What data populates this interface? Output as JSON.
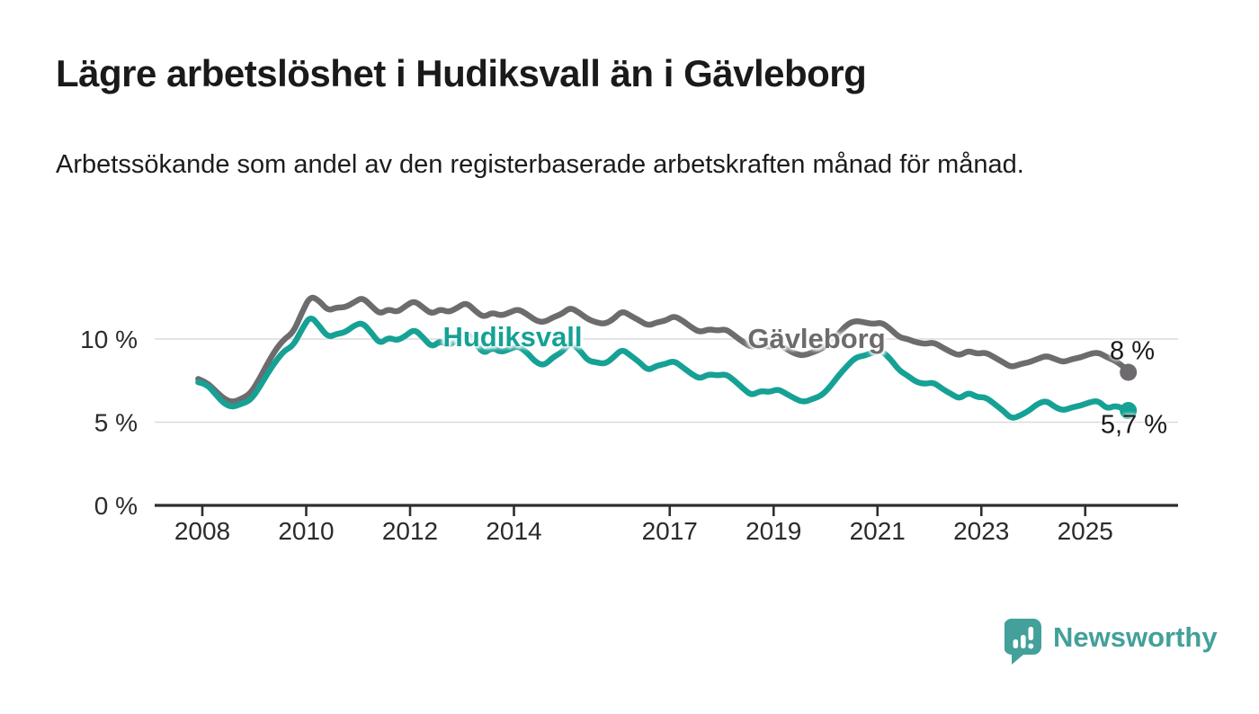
{
  "header": {
    "title": "Lägre arbetslöshet i Hudiksvall än i Gävleborg",
    "subtitle": "Arbetssökande som andel av den registerbaserade arbetskraften månad för månad."
  },
  "footer": {
    "brand": "Newsworthy"
  },
  "colors": {
    "hudiksvall": "#16A195",
    "gavleborg": "#6E6B6E",
    "grid": "#DBDBDB",
    "axis": "#2E2E2E",
    "tick_text": "#2B2B2B",
    "brand_teal": "#43A09A"
  },
  "chart_data": {
    "type": "line",
    "title": "Lägre arbetslöshet i Hudiksvall än i Gävleborg",
    "subtitle": "Arbetssökande som andel av den registerbaserade arbetskraften månad för månad.",
    "xlabel": "",
    "ylabel": "",
    "x_unit": "decimal_year",
    "xlim": [
      2007.9,
      2026.3
    ],
    "ylim": [
      0,
      13.5
    ],
    "grid": "horizontal",
    "legend_position": "inline-labels",
    "y_ticks": [
      {
        "value": 0,
        "label": "0 %"
      },
      {
        "value": 5,
        "label": "5 %"
      },
      {
        "value": 10,
        "label": "10 %"
      }
    ],
    "x_ticks": [
      {
        "value": 2008,
        "label": "2008"
      },
      {
        "value": 2010,
        "label": "2010"
      },
      {
        "value": 2012,
        "label": "2012"
      },
      {
        "value": 2014,
        "label": "2014"
      },
      {
        "value": 2017,
        "label": "2017"
      },
      {
        "value": 2019,
        "label": "2019"
      },
      {
        "value": 2021,
        "label": "2021"
      },
      {
        "value": 2023,
        "label": "2023"
      },
      {
        "value": 2025,
        "label": "2025"
      }
    ],
    "series": [
      {
        "id": "hudiksvall",
        "name": "Hudiksvall",
        "color": "#16A195",
        "end_label": "5,7 %",
        "end_value": 5.7,
        "points": [
          [
            2007.92,
            7.4
          ],
          [
            2008.08,
            7.3
          ],
          [
            2008.25,
            6.7
          ],
          [
            2008.42,
            6.1
          ],
          [
            2008.58,
            5.9
          ],
          [
            2008.75,
            6.1
          ],
          [
            2008.92,
            6.3
          ],
          [
            2009.08,
            7.0
          ],
          [
            2009.25,
            7.9
          ],
          [
            2009.42,
            8.7
          ],
          [
            2009.58,
            9.3
          ],
          [
            2009.75,
            9.6
          ],
          [
            2009.92,
            10.6
          ],
          [
            2010.08,
            11.4
          ],
          [
            2010.25,
            10.8
          ],
          [
            2010.42,
            10.1
          ],
          [
            2010.58,
            10.3
          ],
          [
            2010.75,
            10.4
          ],
          [
            2010.92,
            10.8
          ],
          [
            2011.08,
            11.0
          ],
          [
            2011.25,
            10.4
          ],
          [
            2011.42,
            9.7
          ],
          [
            2011.58,
            10.1
          ],
          [
            2011.75,
            9.9
          ],
          [
            2011.92,
            10.2
          ],
          [
            2012.08,
            10.6
          ],
          [
            2012.25,
            10.1
          ],
          [
            2012.42,
            9.5
          ],
          [
            2012.58,
            9.9
          ],
          [
            2012.75,
            9.6
          ],
          [
            2012.92,
            10.0
          ],
          [
            2013.08,
            10.4
          ],
          [
            2013.25,
            9.8
          ],
          [
            2013.42,
            9.1
          ],
          [
            2013.58,
            9.5
          ],
          [
            2013.75,
            9.2
          ],
          [
            2013.92,
            9.4
          ],
          [
            2014.08,
            9.6
          ],
          [
            2014.25,
            9.2
          ],
          [
            2014.42,
            8.6
          ],
          [
            2014.58,
            8.4
          ],
          [
            2014.75,
            8.9
          ],
          [
            2014.92,
            9.2
          ],
          [
            2015.08,
            9.8
          ],
          [
            2015.25,
            9.4
          ],
          [
            2015.42,
            8.7
          ],
          [
            2015.58,
            8.6
          ],
          [
            2015.75,
            8.5
          ],
          [
            2015.92,
            8.9
          ],
          [
            2016.08,
            9.4
          ],
          [
            2016.25,
            9.0
          ],
          [
            2016.42,
            8.6
          ],
          [
            2016.58,
            8.1
          ],
          [
            2016.75,
            8.4
          ],
          [
            2016.92,
            8.5
          ],
          [
            2017.08,
            8.7
          ],
          [
            2017.25,
            8.3
          ],
          [
            2017.42,
            7.9
          ],
          [
            2017.58,
            7.6
          ],
          [
            2017.75,
            7.9
          ],
          [
            2017.92,
            7.8
          ],
          [
            2018.08,
            7.9
          ],
          [
            2018.25,
            7.5
          ],
          [
            2018.42,
            7.0
          ],
          [
            2018.58,
            6.6
          ],
          [
            2018.75,
            6.9
          ],
          [
            2018.92,
            6.8
          ],
          [
            2019.08,
            7.0
          ],
          [
            2019.25,
            6.7
          ],
          [
            2019.42,
            6.4
          ],
          [
            2019.58,
            6.2
          ],
          [
            2019.75,
            6.4
          ],
          [
            2019.92,
            6.6
          ],
          [
            2020.08,
            7.1
          ],
          [
            2020.25,
            7.8
          ],
          [
            2020.42,
            8.4
          ],
          [
            2020.58,
            8.9
          ],
          [
            2020.75,
            9.0
          ],
          [
            2020.92,
            9.2
          ],
          [
            2021.08,
            9.3
          ],
          [
            2021.25,
            8.8
          ],
          [
            2021.42,
            8.1
          ],
          [
            2021.58,
            7.8
          ],
          [
            2021.75,
            7.4
          ],
          [
            2021.92,
            7.3
          ],
          [
            2022.08,
            7.4
          ],
          [
            2022.25,
            7.0
          ],
          [
            2022.42,
            6.7
          ],
          [
            2022.58,
            6.4
          ],
          [
            2022.75,
            6.8
          ],
          [
            2022.92,
            6.5
          ],
          [
            2023.08,
            6.5
          ],
          [
            2023.25,
            6.1
          ],
          [
            2023.42,
            5.7
          ],
          [
            2023.58,
            5.2
          ],
          [
            2023.75,
            5.4
          ],
          [
            2023.92,
            5.7
          ],
          [
            2024.08,
            6.1
          ],
          [
            2024.25,
            6.3
          ],
          [
            2024.42,
            5.9
          ],
          [
            2024.58,
            5.7
          ],
          [
            2024.75,
            5.9
          ],
          [
            2024.92,
            6.0
          ],
          [
            2025.08,
            6.2
          ],
          [
            2025.25,
            6.3
          ],
          [
            2025.42,
            5.8
          ],
          [
            2025.58,
            6.0
          ],
          [
            2025.75,
            5.8
          ],
          [
            2025.83,
            5.7
          ]
        ]
      },
      {
        "id": "gavleborg",
        "name": "Gävleborg",
        "color": "#6E6B6E",
        "end_label": "8 %",
        "end_value": 8.0,
        "points": [
          [
            2007.92,
            7.6
          ],
          [
            2008.08,
            7.4
          ],
          [
            2008.25,
            6.9
          ],
          [
            2008.42,
            6.4
          ],
          [
            2008.58,
            6.2
          ],
          [
            2008.75,
            6.4
          ],
          [
            2008.92,
            6.7
          ],
          [
            2009.08,
            7.5
          ],
          [
            2009.25,
            8.5
          ],
          [
            2009.42,
            9.4
          ],
          [
            2009.58,
            10.0
          ],
          [
            2009.75,
            10.4
          ],
          [
            2009.92,
            11.6
          ],
          [
            2010.08,
            12.6
          ],
          [
            2010.25,
            12.3
          ],
          [
            2010.42,
            11.7
          ],
          [
            2010.58,
            11.9
          ],
          [
            2010.75,
            11.9
          ],
          [
            2010.92,
            12.2
          ],
          [
            2011.08,
            12.5
          ],
          [
            2011.25,
            12.0
          ],
          [
            2011.42,
            11.5
          ],
          [
            2011.58,
            11.8
          ],
          [
            2011.75,
            11.6
          ],
          [
            2011.92,
            12.0
          ],
          [
            2012.08,
            12.3
          ],
          [
            2012.25,
            11.9
          ],
          [
            2012.42,
            11.5
          ],
          [
            2012.58,
            11.8
          ],
          [
            2012.75,
            11.6
          ],
          [
            2012.92,
            11.9
          ],
          [
            2013.08,
            12.2
          ],
          [
            2013.25,
            11.7
          ],
          [
            2013.42,
            11.3
          ],
          [
            2013.58,
            11.6
          ],
          [
            2013.75,
            11.4
          ],
          [
            2013.92,
            11.6
          ],
          [
            2014.08,
            11.8
          ],
          [
            2014.25,
            11.5
          ],
          [
            2014.42,
            11.1
          ],
          [
            2014.58,
            11.0
          ],
          [
            2014.75,
            11.3
          ],
          [
            2014.92,
            11.5
          ],
          [
            2015.08,
            11.9
          ],
          [
            2015.25,
            11.6
          ],
          [
            2015.42,
            11.2
          ],
          [
            2015.58,
            11.0
          ],
          [
            2015.75,
            10.9
          ],
          [
            2015.92,
            11.2
          ],
          [
            2016.08,
            11.7
          ],
          [
            2016.25,
            11.4
          ],
          [
            2016.42,
            11.1
          ],
          [
            2016.58,
            10.8
          ],
          [
            2016.75,
            11.0
          ],
          [
            2016.92,
            11.1
          ],
          [
            2017.08,
            11.4
          ],
          [
            2017.25,
            11.1
          ],
          [
            2017.42,
            10.7
          ],
          [
            2017.58,
            10.4
          ],
          [
            2017.75,
            10.6
          ],
          [
            2017.92,
            10.5
          ],
          [
            2018.08,
            10.6
          ],
          [
            2018.25,
            10.2
          ],
          [
            2018.42,
            9.8
          ],
          [
            2018.58,
            9.5
          ],
          [
            2018.75,
            9.7
          ],
          [
            2018.92,
            9.5
          ],
          [
            2019.08,
            9.7
          ],
          [
            2019.25,
            9.4
          ],
          [
            2019.42,
            9.1
          ],
          [
            2019.58,
            9.0
          ],
          [
            2019.75,
            9.2
          ],
          [
            2019.92,
            9.4
          ],
          [
            2020.08,
            9.8
          ],
          [
            2020.25,
            10.3
          ],
          [
            2020.42,
            10.9
          ],
          [
            2020.58,
            11.1
          ],
          [
            2020.75,
            11.0
          ],
          [
            2020.92,
            10.9
          ],
          [
            2021.08,
            11.0
          ],
          [
            2021.25,
            10.6
          ],
          [
            2021.42,
            10.1
          ],
          [
            2021.58,
            10.0
          ],
          [
            2021.75,
            9.8
          ],
          [
            2021.92,
            9.7
          ],
          [
            2022.08,
            9.8
          ],
          [
            2022.25,
            9.5
          ],
          [
            2022.42,
            9.2
          ],
          [
            2022.58,
            9.0
          ],
          [
            2022.75,
            9.3
          ],
          [
            2022.92,
            9.1
          ],
          [
            2023.08,
            9.2
          ],
          [
            2023.25,
            8.9
          ],
          [
            2023.42,
            8.6
          ],
          [
            2023.58,
            8.3
          ],
          [
            2023.75,
            8.5
          ],
          [
            2023.92,
            8.6
          ],
          [
            2024.08,
            8.8
          ],
          [
            2024.25,
            9.0
          ],
          [
            2024.42,
            8.8
          ],
          [
            2024.58,
            8.6
          ],
          [
            2024.75,
            8.8
          ],
          [
            2024.92,
            8.9
          ],
          [
            2025.08,
            9.1
          ],
          [
            2025.25,
            9.2
          ],
          [
            2025.42,
            8.9
          ],
          [
            2025.58,
            8.7
          ],
          [
            2025.75,
            8.3
          ],
          [
            2025.83,
            8.0
          ]
        ]
      }
    ]
  }
}
